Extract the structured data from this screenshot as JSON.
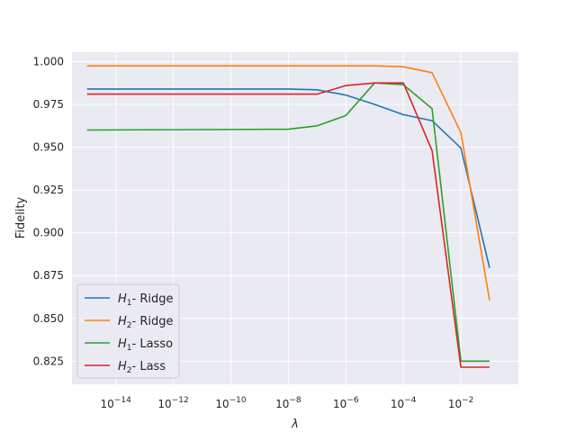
{
  "chart_data": {
    "type": "line",
    "xscale": "log",
    "xlabel": "λ",
    "ylabel": "Fidelity",
    "xlim": [
      3e-16,
      1.0
    ],
    "ylim": [
      0.8115,
      1.0055
    ],
    "xticks": [
      1e-14,
      1e-12,
      1e-10,
      1e-08,
      1e-06,
      0.0001,
      0.01
    ],
    "xtick_labels": [
      {
        "base": "10",
        "exp": "−14"
      },
      {
        "base": "10",
        "exp": "−12"
      },
      {
        "base": "10",
        "exp": "−10"
      },
      {
        "base": "10",
        "exp": "−8"
      },
      {
        "base": "10",
        "exp": "−6"
      },
      {
        "base": "10",
        "exp": "−4"
      },
      {
        "base": "10",
        "exp": "−2"
      }
    ],
    "yticks": [
      0.825,
      0.85,
      0.875,
      0.9,
      0.925,
      0.95,
      0.975,
      1.0
    ],
    "ytick_labels": [
      "0.825",
      "0.850",
      "0.875",
      "0.900",
      "0.925",
      "0.950",
      "0.975",
      "1.000"
    ],
    "grid": true,
    "legend_position": "lower-left",
    "x": [
      1e-15,
      1e-08,
      1e-07,
      1e-06,
      1e-05,
      0.0001,
      0.001,
      0.01,
      0.1
    ],
    "series": [
      {
        "name": "Ridge",
        "math": "H",
        "sub": "1",
        "color": "#1f77b4",
        "values": [
          0.984,
          0.984,
          0.9835,
          0.9805,
          0.975,
          0.969,
          0.9655,
          0.9495,
          0.8795
        ]
      },
      {
        "name": "Ridge",
        "math": "H",
        "sub": "2",
        "color": "#ff7f0e",
        "values": [
          0.9975,
          0.9975,
          0.9975,
          0.9975,
          0.9975,
          0.997,
          0.9935,
          0.9585,
          0.8605
        ]
      },
      {
        "name": "Lasso",
        "math": "H",
        "sub": "1",
        "color": "#2ca02c",
        "values": [
          0.96,
          0.9605,
          0.9625,
          0.9685,
          0.9875,
          0.9865,
          0.9725,
          0.825,
          0.825
        ]
      },
      {
        "name": "Lass",
        "math": "H",
        "sub": "2",
        "color": "#d62728",
        "values": [
          0.981,
          0.981,
          0.981,
          0.986,
          0.9875,
          0.9875,
          0.948,
          0.8215,
          0.8215
        ]
      }
    ]
  }
}
